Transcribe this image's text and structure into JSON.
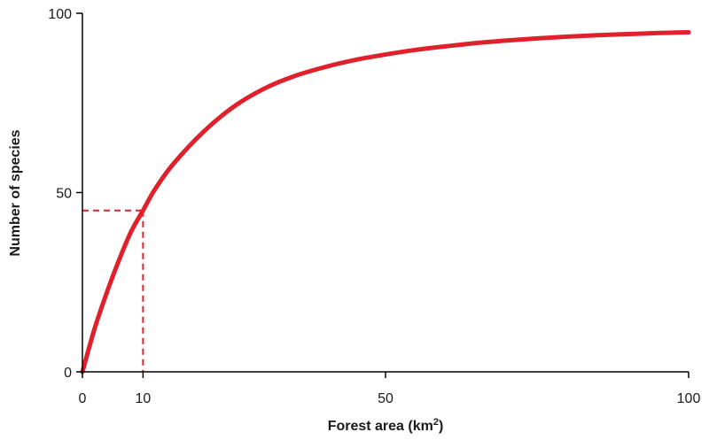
{
  "chart_data": {
    "type": "line",
    "xlabel": "Forest area (km",
    "xlabel_superscript": "2",
    "xlabel_suffix": ")",
    "ylabel": "Number of species",
    "xlim": [
      0,
      100
    ],
    "ylim": [
      0,
      100
    ],
    "x_ticks": [
      0,
      10,
      50,
      100
    ],
    "y_ticks": [
      0,
      50,
      100
    ],
    "grid": false,
    "series": [
      {
        "color": "#e0202a",
        "x": [
          0,
          2,
          4,
          6,
          8,
          10,
          12,
          15,
          20,
          25,
          30,
          35,
          40,
          45,
          50,
          55,
          60,
          65,
          70,
          75,
          80,
          85,
          90,
          95,
          100
        ],
        "y": [
          0,
          12,
          22,
          31,
          39,
          45,
          51,
          58,
          67,
          74,
          79,
          82.5,
          85,
          87,
          88.5,
          89.8,
          90.8,
          91.7,
          92.4,
          93,
          93.5,
          93.9,
          94.2,
          94.5,
          94.7
        ]
      }
    ],
    "highlight": {
      "x": 10,
      "y": 45,
      "color": "#e0202a"
    }
  }
}
